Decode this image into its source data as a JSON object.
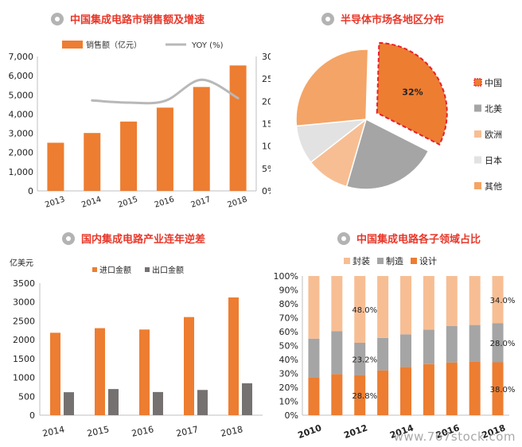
{
  "colors": {
    "orange": "#ed7d31",
    "gray": "#a5a5a5",
    "lightgray": "#d9d9d9",
    "lightorange": "#f7be94",
    "midorange": "#f4a466",
    "darkgray": "#767171",
    "title": "#e8382a",
    "yoy_line": "#b8b8b8"
  },
  "watermark": "www.767stock.com",
  "chart_data": [
    {
      "type": "bar",
      "title": "中国集成电路市销售额及增速",
      "categories": [
        "2013",
        "2014",
        "2015",
        "2016",
        "2017",
        "2018"
      ],
      "series": [
        {
          "name": "销售额（亿元）",
          "values": [
            2508,
            3015,
            3610,
            4336,
            5411,
            6532
          ],
          "axis": "left",
          "color": "#ed7d31"
        },
        {
          "name": "YOY (%)",
          "type": "line",
          "values": [
            null,
            20.2,
            19.7,
            20.1,
            24.8,
            20.7
          ],
          "axis": "right",
          "color": "#b8b8b8"
        }
      ],
      "ylim": [
        0,
        7000
      ],
      "yticks": [
        "0",
        "1,000",
        "2,000",
        "3,000",
        "4,000",
        "5,000",
        "6,000",
        "7,000"
      ],
      "y2lim": [
        0,
        30
      ],
      "y2ticks": [
        "0%",
        "5%",
        "10%",
        "15%",
        "20%",
        "25%",
        "30%"
      ],
      "legend": "top"
    },
    {
      "type": "pie",
      "title": "半导体市场各地区分布",
      "labels": [
        "中国",
        "北美",
        "欧洲",
        "日本",
        "其他"
      ],
      "values": [
        32,
        22,
        10,
        9,
        27
      ],
      "colors": [
        "#ed7d31",
        "#a5a5a5",
        "#f7be94",
        "#e2e2e2",
        "#f4a466"
      ],
      "data_label": "32%",
      "exploded": "中国",
      "legend": "right"
    },
    {
      "type": "bar",
      "title": "国内集成电路产业连年逆差",
      "ylabel": "亿美元",
      "categories": [
        "2014",
        "2015",
        "2016",
        "2017",
        "2018"
      ],
      "series": [
        {
          "name": "进口金额",
          "values": [
            2185,
            2307,
            2271,
            2601,
            3121
          ],
          "color": "#ed7d31"
        },
        {
          "name": "出口金额",
          "values": [
            609,
            693,
            614,
            669,
            846
          ],
          "color": "#767171"
        }
      ],
      "ylim": [
        0,
        3500
      ],
      "yticks": [
        "0",
        "500",
        "1000",
        "1500",
        "2000",
        "2500",
        "3000",
        "3500"
      ],
      "legend": "top"
    },
    {
      "type": "bar",
      "stacked": true,
      "title": "中国集成电路各子领域占比",
      "categories": [
        "2010",
        "2011",
        "2012",
        "2013",
        "2014",
        "2015",
        "2016",
        "2017",
        "2018"
      ],
      "xtick_labels": [
        "2010",
        "",
        "2012",
        "",
        "2014",
        "",
        "2016",
        "",
        "2018"
      ],
      "series": [
        {
          "name": "设计",
          "values": [
            27.3,
            29.5,
            28.8,
            32.2,
            34.7,
            36.7,
            37.9,
            38.3,
            38.0
          ],
          "color": "#ed7d31"
        },
        {
          "name": "制造",
          "values": [
            27.7,
            30.8,
            23.2,
            23.3,
            23.4,
            24.7,
            26.1,
            26.5,
            28.0
          ],
          "color": "#a5a5a5"
        },
        {
          "name": "封装",
          "values": [
            45.0,
            39.7,
            48.0,
            44.5,
            41.9,
            38.6,
            36.0,
            35.2,
            34.0
          ],
          "color": "#f7be94"
        }
      ],
      "legend_order": [
        "封装",
        "制造",
        "设计"
      ],
      "data_labels": [
        {
          "category": "2012",
          "series": "封装",
          "text": "48.0%"
        },
        {
          "category": "2012",
          "series": "制造",
          "text": "23.2%"
        },
        {
          "category": "2012",
          "series": "设计",
          "text": "28.8%"
        },
        {
          "category": "2018",
          "series": "封装",
          "text": "34.0%"
        },
        {
          "category": "2018",
          "series": "制造",
          "text": "28.0%"
        },
        {
          "category": "2018",
          "series": "设计",
          "text": "38.0%"
        }
      ],
      "ylim": [
        0,
        100
      ],
      "yticks": [
        "0%",
        "10%",
        "20%",
        "30%",
        "40%",
        "50%",
        "60%",
        "70%",
        "80%",
        "90%",
        "100%"
      ],
      "legend": "top"
    }
  ]
}
